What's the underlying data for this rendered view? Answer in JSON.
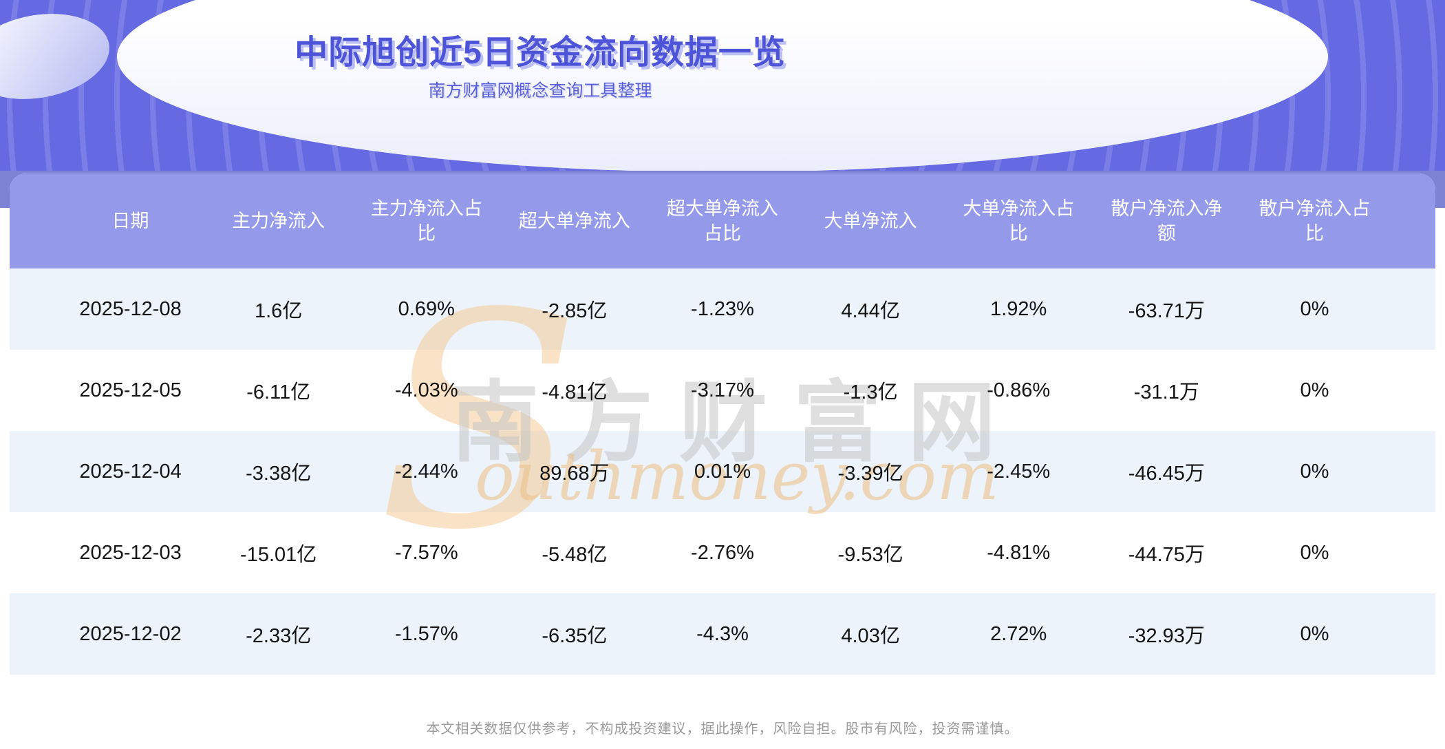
{
  "hero": {
    "title": "中际旭创近5日资金流向数据一览",
    "subtitle": "南方财富网概念查询工具整理"
  },
  "chart_data": {
    "type": "table",
    "title": "中际旭创近5日资金流向数据一览",
    "columns": [
      "日期",
      "主力净流入",
      "主力净流入占比",
      "超大单净流入",
      "超大单净流入占比",
      "大单净流入",
      "大单净流入占比",
      "散户净流入净额",
      "散户净流入占比"
    ],
    "rows": [
      [
        "2025-12-08",
        "1.6亿",
        "0.69%",
        "-2.85亿",
        "-1.23%",
        "4.44亿",
        "1.92%",
        "-63.71万",
        "0%"
      ],
      [
        "2025-12-05",
        "-6.11亿",
        "-4.03%",
        "-4.81亿",
        "-3.17%",
        "-1.3亿",
        "-0.86%",
        "-31.1万",
        "0%"
      ],
      [
        "2025-12-04",
        "-3.38亿",
        "-2.44%",
        "89.68万",
        "0.01%",
        "-3.39亿",
        "-2.45%",
        "-46.45万",
        "0%"
      ],
      [
        "2025-12-03",
        "-15.01亿",
        "-7.57%",
        "-5.48亿",
        "-2.76%",
        "-9.53亿",
        "-4.81%",
        "-44.75万",
        "0%"
      ],
      [
        "2025-12-02",
        "-2.33亿",
        "-1.57%",
        "-6.35亿",
        "-4.3%",
        "4.03亿",
        "2.72%",
        "-32.93万",
        "0%"
      ]
    ]
  },
  "watermark": {
    "s_glyph": "S",
    "cn_text": "南方财富网",
    "en_text": "outhmoney.com"
  },
  "footer": {
    "disclaimer": "本文相关数据仅供参考，不构成投资建议，据此操作，风险自担。股市有风险，投资需谨慎。"
  },
  "colors": {
    "hero_bg": "#6569e2",
    "header_bg": "#9599e9",
    "band": "#7e82d3",
    "row_alt_bg": "#ecf3fa",
    "title_text": "#4e54d8",
    "subtitle_text": "#5a60da",
    "header_text": "#ffffff",
    "cell_text": "#141414",
    "footer_text": "#9b9b9b",
    "watermark_orange": "#f5c78c",
    "watermark_gray": "#c6c6c6"
  }
}
